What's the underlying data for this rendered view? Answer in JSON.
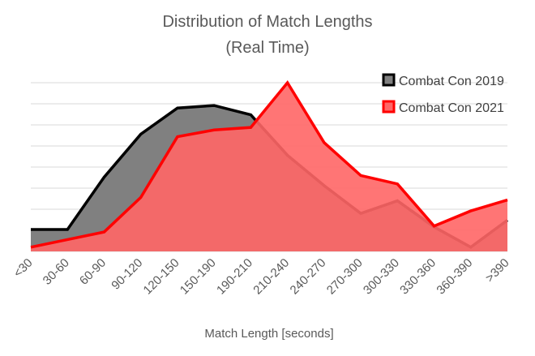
{
  "chart_data": {
    "type": "area",
    "title_lines": [
      "Distribution of Match Lengths",
      "(Real Time)"
    ],
    "xlabel": "Match Length [seconds]",
    "ylabel": "",
    "categories": [
      "<30",
      "30-60",
      "60-90",
      "90-120",
      "120-150",
      "150-190",
      "190-210",
      "210-240",
      "240-270",
      "270-300",
      "300-330",
      "330-360",
      "360-390",
      ">390"
    ],
    "ylim": [
      0,
      8
    ],
    "grid": true,
    "legend_position": "top-right",
    "series": [
      {
        "name": "Combat Con 2019",
        "values": [
          1.04,
          1.04,
          3.52,
          5.56,
          6.8,
          6.92,
          6.48,
          4.56,
          3.12,
          1.8,
          2.4,
          1.16,
          0.2,
          1.48
        ],
        "fill": "#808080",
        "stroke": "#000000"
      },
      {
        "name": "Combat Con 2021",
        "values": [
          0.2,
          0.56,
          0.92,
          2.56,
          5.44,
          5.76,
          5.88,
          8.0,
          5.16,
          3.6,
          3.2,
          1.2,
          1.92,
          2.44
        ],
        "fill": "#ff6666",
        "stroke": "#ff0000"
      }
    ]
  }
}
